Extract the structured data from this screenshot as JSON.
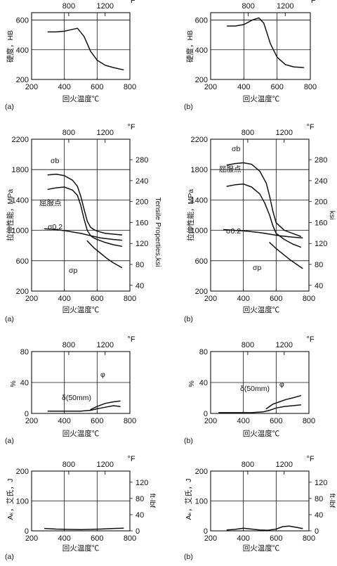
{
  "chart_data": [
    {
      "id": "hardness_a",
      "type": "line",
      "panel_label": "(a)",
      "xlabel": "回火温度℃",
      "ylabel": "硬度，HB",
      "top_axis_unit": "°F",
      "xlim": [
        200,
        800
      ],
      "ylim": [
        200,
        650
      ],
      "xticks": [
        200,
        400,
        600,
        800
      ],
      "yticks": [
        200,
        400,
        600
      ],
      "top_ticks": [
        800,
        1200
      ],
      "grid": true,
      "series": [
        {
          "name": "",
          "x": [
            300,
            350,
            400,
            440,
            480,
            520,
            560,
            600,
            650,
            700,
            760
          ],
          "y": [
            520,
            520,
            525,
            535,
            545,
            490,
            390,
            330,
            295,
            280,
            265
          ]
        }
      ],
      "annotations": []
    },
    {
      "id": "hardness_b",
      "type": "line",
      "panel_label": "(b)",
      "xlabel": "回火温度℃",
      "ylabel": "硬度，HB",
      "top_axis_unit": "°F",
      "xlim": [
        200,
        800
      ],
      "ylim": [
        200,
        650
      ],
      "xticks": [
        200,
        400,
        600,
        800
      ],
      "yticks": [
        200,
        400,
        600
      ],
      "top_ticks": [
        800,
        1200
      ],
      "grid": true,
      "series": [
        {
          "name": "",
          "x": [
            300,
            350,
            400,
            450,
            490,
            520,
            560,
            600,
            650,
            700,
            760
          ],
          "y": [
            560,
            560,
            570,
            600,
            615,
            580,
            440,
            350,
            300,
            285,
            280
          ]
        }
      ],
      "annotations": []
    },
    {
      "id": "tensile_a",
      "type": "line",
      "panel_label": "(a)",
      "xlabel": "回火温度℃",
      "ylabel": "拉伸性能，MPa",
      "right_ylabel": "Tensile  Properties,ksi",
      "top_axis_unit": "°F",
      "xlim": [
        200,
        800
      ],
      "ylim": [
        200,
        2200
      ],
      "xticks": [
        200,
        400,
        600,
        800
      ],
      "yticks": [
        200,
        600,
        1000,
        1400,
        1800,
        2200
      ],
      "right_yticks": [
        40,
        80,
        120,
        160,
        200,
        240,
        280
      ],
      "top_ticks": [
        800,
        1200
      ],
      "grid": true,
      "series": [
        {
          "name": "σb",
          "x": [
            300,
            350,
            400,
            450,
            480,
            500,
            520,
            540,
            560,
            580,
            600,
            650,
            700,
            750
          ],
          "y": [
            1730,
            1740,
            1720,
            1660,
            1580,
            1450,
            1280,
            1120,
            1040,
            1010,
            990,
            960,
            950,
            940
          ]
        },
        {
          "name": "屈服点",
          "x": [
            300,
            350,
            400,
            450,
            480,
            500,
            520,
            540,
            560,
            580,
            600,
            650,
            700,
            750
          ],
          "y": [
            1540,
            1560,
            1570,
            1530,
            1460,
            1330,
            1150,
            1000,
            930,
            900,
            880,
            840,
            810,
            790
          ]
        },
        {
          "name": "σ0.2",
          "x": [
            280,
            350,
            420,
            500,
            560,
            620,
            700,
            750
          ],
          "y": [
            1020,
            1010,
            990,
            960,
            930,
            900,
            880,
            870
          ]
        },
        {
          "name": "σp",
          "x": [
            540,
            580,
            620,
            660,
            700,
            750
          ],
          "y": [
            860,
            770,
            700,
            630,
            570,
            510
          ]
        }
      ],
      "annotations": [
        "σb",
        "屈服点",
        "σ0.2",
        "σp"
      ]
    },
    {
      "id": "tensile_b",
      "type": "line",
      "panel_label": "(b)",
      "xlabel": "回火温度℃",
      "ylabel": "拉伸性能，MPa",
      "right_ylabel": "ksi",
      "top_axis_unit": "°F",
      "xlim": [
        200,
        800
      ],
      "ylim": [
        200,
        2200
      ],
      "xticks": [
        200,
        400,
        600,
        800
      ],
      "yticks": [
        200,
        600,
        1000,
        1400,
        1800,
        2200
      ],
      "right_yticks": [
        40,
        80,
        120,
        160,
        200,
        240,
        280
      ],
      "top_ticks": [
        800,
        1200
      ],
      "grid": true,
      "series": [
        {
          "name": "σb",
          "x": [
            300,
            350,
            400,
            450,
            500,
            540,
            560,
            580,
            600,
            650,
            700,
            750
          ],
          "y": [
            1860,
            1880,
            1890,
            1870,
            1780,
            1620,
            1450,
            1250,
            1100,
            1000,
            960,
            920
          ]
        },
        {
          "name": "屈服点",
          "x": [
            300,
            350,
            400,
            450,
            500,
            530,
            560,
            580,
            600,
            650,
            700,
            750
          ],
          "y": [
            1580,
            1600,
            1610,
            1570,
            1480,
            1360,
            1200,
            1060,
            960,
            880,
            820,
            780
          ]
        },
        {
          "name": "σ0.2",
          "x": [
            280,
            350,
            420,
            500,
            560,
            620,
            700,
            760
          ],
          "y": [
            1010,
            1000,
            990,
            970,
            950,
            930,
            910,
            900
          ]
        },
        {
          "name": "σp",
          "x": [
            560,
            600,
            640,
            680,
            720,
            760
          ],
          "y": [
            840,
            760,
            690,
            620,
            560,
            500
          ]
        }
      ],
      "annotations": [
        "σb",
        "屈服点",
        "σ0.2",
        "σp"
      ]
    },
    {
      "id": "ductility_a",
      "type": "line",
      "panel_label": "(a)",
      "xlabel": "回火温度℃",
      "ylabel": "%",
      "top_axis_unit": "°F",
      "xlim": [
        200,
        800
      ],
      "ylim": [
        0,
        80
      ],
      "xticks": [
        200,
        400,
        600,
        800
      ],
      "yticks": [
        0,
        40,
        80
      ],
      "top_ticks": [
        800,
        1200
      ],
      "grid": true,
      "series": [
        {
          "name": "φ",
          "x": [
            560,
            600,
            650,
            700,
            740
          ],
          "y": [
            5,
            9,
            13,
            15,
            16
          ]
        },
        {
          "name": "δ(50mm)",
          "x": [
            300,
            400,
            500,
            560,
            600,
            650,
            700,
            740
          ],
          "y": [
            3,
            3,
            3,
            4,
            6,
            8,
            10,
            9
          ]
        }
      ],
      "annotations": [
        "φ",
        "δ(50mm)"
      ]
    },
    {
      "id": "ductility_b",
      "type": "line",
      "panel_label": "(b)",
      "xlabel": "回火温度℃",
      "ylabel": "%",
      "top_axis_unit": "°F",
      "xlim": [
        200,
        800
      ],
      "ylim": [
        0,
        80
      ],
      "xticks": [
        200,
        400,
        600,
        800
      ],
      "yticks": [
        0,
        40,
        80
      ],
      "top_ticks": [
        800,
        1200
      ],
      "grid": true,
      "series": [
        {
          "name": "φ",
          "x": [
            540,
            580,
            620,
            660,
            700,
            750
          ],
          "y": [
            6,
            12,
            15,
            18,
            20,
            23
          ]
        },
        {
          "name": "δ(50mm)",
          "x": [
            250,
            350,
            450,
            520,
            560,
            600,
            650,
            700,
            750
          ],
          "y": [
            1,
            1,
            1,
            2,
            4,
            7,
            9,
            10,
            11
          ]
        }
      ],
      "annotations": [
        "φ",
        "δ(50mm)"
      ]
    },
    {
      "id": "impact_a",
      "type": "line",
      "panel_label": "(a)",
      "xlabel": "回火温度℃",
      "ylabel": "Aₖ，艾氏，J",
      "right_ylabel": "ft·lbf",
      "top_axis_unit": "°F",
      "xlim": [
        200,
        800
      ],
      "ylim": [
        0,
        200
      ],
      "xticks": [
        200,
        400,
        600,
        800
      ],
      "yticks": [
        0,
        100,
        200
      ],
      "right_yticks": [
        0,
        40,
        80,
        120
      ],
      "top_ticks": [
        800,
        1200
      ],
      "grid": true,
      "series": [
        {
          "name": "",
          "x": [
            280,
            350,
            420,
            500,
            560,
            620,
            700,
            760
          ],
          "y": [
            8,
            6,
            5,
            4,
            5,
            6,
            8,
            9
          ]
        }
      ],
      "annotations": []
    },
    {
      "id": "impact_b",
      "type": "line",
      "panel_label": "(b)",
      "xlabel": "回火温度℃",
      "ylabel": "Aₖ，艾氏，J",
      "right_ylabel": "ft·lbf",
      "top_axis_unit": "°F",
      "xlim": [
        200,
        800
      ],
      "ylim": [
        0,
        200
      ],
      "xticks": [
        200,
        400,
        600,
        800
      ],
      "yticks": [
        0,
        100,
        200
      ],
      "right_yticks": [
        0,
        40,
        80,
        120
      ],
      "top_ticks": [
        800,
        1200
      ],
      "grid": true,
      "series": [
        {
          "name": "",
          "x": [
            300,
            350,
            400,
            450,
            500,
            550,
            600,
            640,
            680,
            720,
            760
          ],
          "y": [
            3,
            5,
            9,
            6,
            3,
            2,
            6,
            14,
            16,
            12,
            8
          ]
        }
      ],
      "annotations": []
    }
  ]
}
